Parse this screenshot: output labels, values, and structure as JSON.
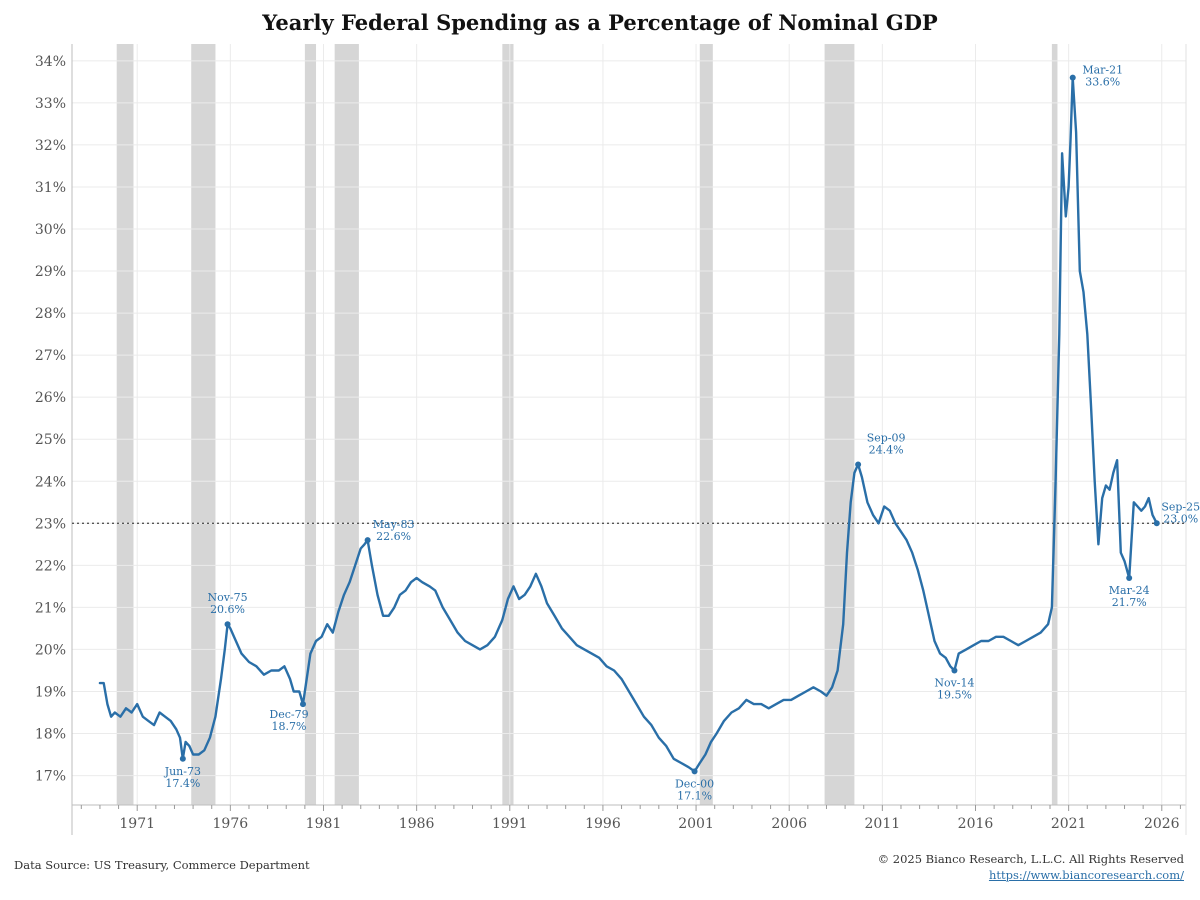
{
  "chart_data": {
    "type": "line",
    "title": "Yearly Federal Spending as a Percentage of Nominal GDP",
    "xlabel": "",
    "ylabel": "",
    "xlim": [
      1967.5,
      2027.3
    ],
    "ylim": [
      16.3,
      34.4
    ],
    "y_ticks": [
      "17%",
      "18%",
      "19%",
      "20%",
      "21%",
      "22%",
      "23%",
      "24%",
      "25%",
      "26%",
      "27%",
      "28%",
      "29%",
      "30%",
      "31%",
      "32%",
      "33%",
      "34%"
    ],
    "x_ticks": [
      "1971",
      "1976",
      "1981",
      "1986",
      "1991",
      "1996",
      "2001",
      "2006",
      "2011",
      "2016",
      "2021",
      "2026"
    ],
    "grid": true,
    "reference_line": {
      "y": 23.0,
      "style": "dotted"
    },
    "recessions": [
      [
        1969.9,
        1970.8
      ],
      [
        1973.9,
        1975.2
      ],
      [
        1980.0,
        1980.6
      ],
      [
        1981.6,
        1982.9
      ],
      [
        1990.6,
        1991.2
      ],
      [
        2001.2,
        2001.9
      ],
      [
        2007.9,
        2009.5
      ],
      [
        2020.1,
        2020.4
      ]
    ],
    "series": [
      {
        "color": "#2a6fa8",
        "points": [
          [
            1969.0,
            19.2
          ],
          [
            1969.2,
            19.2
          ],
          [
            1969.4,
            18.7
          ],
          [
            1969.6,
            18.4
          ],
          [
            1969.8,
            18.5
          ],
          [
            1970.1,
            18.4
          ],
          [
            1970.4,
            18.6
          ],
          [
            1970.7,
            18.5
          ],
          [
            1971.0,
            18.7
          ],
          [
            1971.3,
            18.4
          ],
          [
            1971.6,
            18.3
          ],
          [
            1971.9,
            18.2
          ],
          [
            1972.2,
            18.5
          ],
          [
            1972.5,
            18.4
          ],
          [
            1972.8,
            18.3
          ],
          [
            1973.1,
            18.1
          ],
          [
            1973.3,
            17.9
          ],
          [
            1973.45,
            17.4
          ],
          [
            1973.6,
            17.8
          ],
          [
            1973.8,
            17.7
          ],
          [
            1974.0,
            17.5
          ],
          [
            1974.3,
            17.5
          ],
          [
            1974.6,
            17.6
          ],
          [
            1974.9,
            17.9
          ],
          [
            1975.2,
            18.4
          ],
          [
            1975.5,
            19.3
          ],
          [
            1975.7,
            20.0
          ],
          [
            1975.85,
            20.6
          ],
          [
            1976.0,
            20.5
          ],
          [
            1976.3,
            20.2
          ],
          [
            1976.6,
            19.9
          ],
          [
            1977.0,
            19.7
          ],
          [
            1977.4,
            19.6
          ],
          [
            1977.8,
            19.4
          ],
          [
            1978.2,
            19.5
          ],
          [
            1978.6,
            19.5
          ],
          [
            1978.9,
            19.6
          ],
          [
            1979.2,
            19.3
          ],
          [
            1979.4,
            19.0
          ],
          [
            1979.7,
            19.0
          ],
          [
            1979.9,
            18.7
          ],
          [
            1980.1,
            19.3
          ],
          [
            1980.3,
            19.9
          ],
          [
            1980.6,
            20.2
          ],
          [
            1980.9,
            20.3
          ],
          [
            1981.2,
            20.6
          ],
          [
            1981.5,
            20.4
          ],
          [
            1981.8,
            20.9
          ],
          [
            1982.1,
            21.3
          ],
          [
            1982.4,
            21.6
          ],
          [
            1982.7,
            22.0
          ],
          [
            1983.0,
            22.4
          ],
          [
            1983.2,
            22.5
          ],
          [
            1983.37,
            22.6
          ],
          [
            1983.6,
            22.0
          ],
          [
            1983.9,
            21.3
          ],
          [
            1984.2,
            20.8
          ],
          [
            1984.5,
            20.8
          ],
          [
            1984.8,
            21.0
          ],
          [
            1985.1,
            21.3
          ],
          [
            1985.4,
            21.4
          ],
          [
            1985.7,
            21.6
          ],
          [
            1986.0,
            21.7
          ],
          [
            1986.3,
            21.6
          ],
          [
            1986.7,
            21.5
          ],
          [
            1987.0,
            21.4
          ],
          [
            1987.4,
            21.0
          ],
          [
            1987.8,
            20.7
          ],
          [
            1988.2,
            20.4
          ],
          [
            1988.6,
            20.2
          ],
          [
            1989.0,
            20.1
          ],
          [
            1989.4,
            20.0
          ],
          [
            1989.8,
            20.1
          ],
          [
            1990.2,
            20.3
          ],
          [
            1990.6,
            20.7
          ],
          [
            1990.9,
            21.2
          ],
          [
            1991.2,
            21.5
          ],
          [
            1991.5,
            21.2
          ],
          [
            1991.8,
            21.3
          ],
          [
            1992.1,
            21.5
          ],
          [
            1992.4,
            21.8
          ],
          [
            1992.7,
            21.5
          ],
          [
            1993.0,
            21.1
          ],
          [
            1993.4,
            20.8
          ],
          [
            1993.8,
            20.5
          ],
          [
            1994.2,
            20.3
          ],
          [
            1994.6,
            20.1
          ],
          [
            1995.0,
            20.0
          ],
          [
            1995.4,
            19.9
          ],
          [
            1995.8,
            19.8
          ],
          [
            1996.2,
            19.6
          ],
          [
            1996.6,
            19.5
          ],
          [
            1997.0,
            19.3
          ],
          [
            1997.4,
            19.0
          ],
          [
            1997.8,
            18.7
          ],
          [
            1998.2,
            18.4
          ],
          [
            1998.6,
            18.2
          ],
          [
            1999.0,
            17.9
          ],
          [
            1999.4,
            17.7
          ],
          [
            1999.8,
            17.4
          ],
          [
            2000.2,
            17.3
          ],
          [
            2000.6,
            17.2
          ],
          [
            2000.92,
            17.1
          ],
          [
            2001.2,
            17.3
          ],
          [
            2001.5,
            17.5
          ],
          [
            2001.8,
            17.8
          ],
          [
            2002.1,
            18.0
          ],
          [
            2002.5,
            18.3
          ],
          [
            2002.9,
            18.5
          ],
          [
            2003.3,
            18.6
          ],
          [
            2003.7,
            18.8
          ],
          [
            2004.1,
            18.7
          ],
          [
            2004.5,
            18.7
          ],
          [
            2004.9,
            18.6
          ],
          [
            2005.3,
            18.7
          ],
          [
            2005.7,
            18.8
          ],
          [
            2006.1,
            18.8
          ],
          [
            2006.5,
            18.9
          ],
          [
            2006.9,
            19.0
          ],
          [
            2007.3,
            19.1
          ],
          [
            2007.7,
            19.0
          ],
          [
            2008.0,
            18.9
          ],
          [
            2008.3,
            19.1
          ],
          [
            2008.6,
            19.5
          ],
          [
            2008.9,
            20.6
          ],
          [
            2009.1,
            22.3
          ],
          [
            2009.3,
            23.5
          ],
          [
            2009.5,
            24.2
          ],
          [
            2009.7,
            24.4
          ],
          [
            2009.9,
            24.1
          ],
          [
            2010.2,
            23.5
          ],
          [
            2010.5,
            23.2
          ],
          [
            2010.8,
            23.0
          ],
          [
            2011.1,
            23.4
          ],
          [
            2011.4,
            23.3
          ],
          [
            2011.7,
            23.0
          ],
          [
            2012.0,
            22.8
          ],
          [
            2012.3,
            22.6
          ],
          [
            2012.6,
            22.3
          ],
          [
            2012.9,
            21.9
          ],
          [
            2013.2,
            21.4
          ],
          [
            2013.5,
            20.8
          ],
          [
            2013.8,
            20.2
          ],
          [
            2014.1,
            19.9
          ],
          [
            2014.4,
            19.8
          ],
          [
            2014.65,
            19.6
          ],
          [
            2014.87,
            19.5
          ],
          [
            2015.1,
            19.9
          ],
          [
            2015.5,
            20.0
          ],
          [
            2015.9,
            20.1
          ],
          [
            2016.3,
            20.2
          ],
          [
            2016.7,
            20.2
          ],
          [
            2017.1,
            20.3
          ],
          [
            2017.5,
            20.3
          ],
          [
            2017.9,
            20.2
          ],
          [
            2018.3,
            20.1
          ],
          [
            2018.7,
            20.2
          ],
          [
            2019.1,
            20.3
          ],
          [
            2019.5,
            20.4
          ],
          [
            2019.9,
            20.6
          ],
          [
            2020.1,
            21.0
          ],
          [
            2020.3,
            24.0
          ],
          [
            2020.5,
            27.5
          ],
          [
            2020.65,
            31.8
          ],
          [
            2020.85,
            30.3
          ],
          [
            2021.0,
            31.0
          ],
          [
            2021.1,
            32.1
          ],
          [
            2021.22,
            33.6
          ],
          [
            2021.4,
            32.3
          ],
          [
            2021.6,
            29.0
          ],
          [
            2021.8,
            28.5
          ],
          [
            2022.0,
            27.5
          ],
          [
            2022.2,
            25.8
          ],
          [
            2022.4,
            24.0
          ],
          [
            2022.6,
            22.5
          ],
          [
            2022.8,
            23.6
          ],
          [
            2023.0,
            23.9
          ],
          [
            2023.2,
            23.8
          ],
          [
            2023.4,
            24.2
          ],
          [
            2023.6,
            24.5
          ],
          [
            2023.8,
            22.3
          ],
          [
            2024.0,
            22.1
          ],
          [
            2024.25,
            21.7
          ],
          [
            2024.5,
            23.5
          ],
          [
            2024.7,
            23.4
          ],
          [
            2024.9,
            23.3
          ],
          [
            2025.1,
            23.4
          ],
          [
            2025.3,
            23.6
          ],
          [
            2025.5,
            23.2
          ],
          [
            2025.73,
            23.0
          ]
        ]
      }
    ],
    "annotations": [
      {
        "date": "Jun-73",
        "value": "17.4%",
        "x": 1973.45,
        "y": 17.4,
        "pos": "below"
      },
      {
        "date": "Nov-75",
        "value": "20.6%",
        "x": 1975.85,
        "y": 20.6,
        "pos": "above"
      },
      {
        "date": "Dec-79",
        "value": "18.7%",
        "x": 1979.9,
        "y": 18.7,
        "pos": "belowleft"
      },
      {
        "date": "May-83",
        "value": "22.6%",
        "x": 1983.37,
        "y": 22.6,
        "pos": "aboveright"
      },
      {
        "date": "Dec-00",
        "value": "17.1%",
        "x": 2000.92,
        "y": 17.1,
        "pos": "below"
      },
      {
        "date": "Sep-09",
        "value": "24.4%",
        "x": 2009.7,
        "y": 24.4,
        "pos": "aboveright"
      },
      {
        "date": "Nov-14",
        "value": "19.5%",
        "x": 2014.87,
        "y": 19.5,
        "pos": "below"
      },
      {
        "date": "Mar-21",
        "value": "33.6%",
        "x": 2021.22,
        "y": 33.6,
        "pos": "right"
      },
      {
        "date": "Mar-24",
        "value": "21.7%",
        "x": 2024.25,
        "y": 21.7,
        "pos": "below"
      },
      {
        "date": "Sep-25",
        "value": "23.0%",
        "x": 2025.73,
        "y": 23.0,
        "pos": "right"
      }
    ]
  },
  "colors": {
    "line": "#2a6fa8",
    "recession": "#d6d6d6",
    "grid": "#ebebeb",
    "reference": "#555555"
  },
  "footer": {
    "source": "Data Source: US Treasury, Commerce Department",
    "copyright": "© 2025 Bianco Research, L.L.C. All Rights Reserved",
    "url": "https://www.biancoresearch.com/"
  }
}
